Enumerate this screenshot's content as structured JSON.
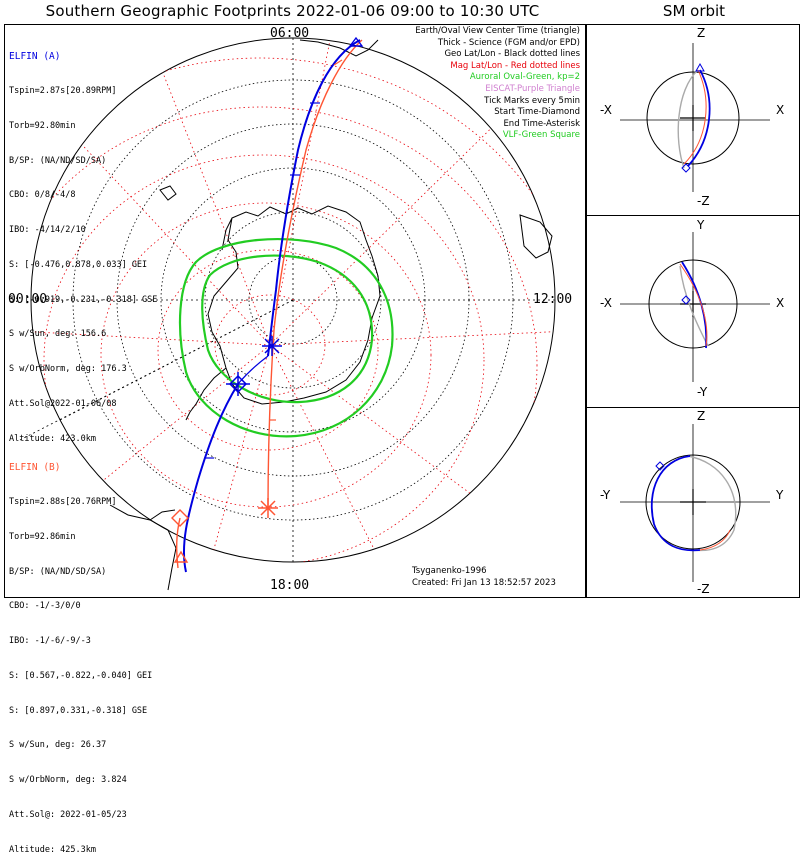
{
  "title": "Southern Geographic Footprints 2022-01-06 09:00 to 10:30 UTC",
  "sm_title": "SM orbit",
  "elfin_a": {
    "header": "ELFIN (A)",
    "lines": [
      "Tspin=2.87s[20.89RPM]",
      "Torb=92.80min",
      "B/SP: (NA/ND/SD/SA)",
      "CBO: 0/8/-4/8",
      "IBO: -4/14/2/10",
      "S: [-0.476,0.878,0.033] GEI",
      "S: [-0.919,-0.231,-0.318] GSE",
      "S w/Sun, deg: 156.6",
      "S w/OrbNorm, deg: 176.3",
      "Att.Sol@2022-01-06/08",
      "Altitude: 423.0km"
    ]
  },
  "elfin_b": {
    "header": "ELFIN (B)",
    "lines": [
      "Tspin=2.88s[20.76RPM]",
      "Torb=92.86min",
      "B/SP: (NA/ND/SD/SA)",
      "CBO: -1/-3/0/0",
      "IBO: -1/-6/-9/-3",
      "S: [0.567,-0.822,-0.040] GEI",
      "S: [0.897,0.331,-0.318] GSE",
      "S w/Sun, deg: 26.37",
      "S w/OrbNorm, deg: 3.824",
      "Att.Sol@: 2022-01-05/23",
      "Altitude: 425.3km"
    ]
  },
  "legend": [
    {
      "text": "Earth/Oval View Center Time (triangle)",
      "color": "#000000"
    },
    {
      "text": "Thick - Science (FGM and/or EPD)",
      "color": "#000000"
    },
    {
      "text": "Geo Lat/Lon - Black dotted lines",
      "color": "#000000"
    },
    {
      "text": "Mag Lat/Lon - Red dotted lines",
      "color": "#e8000a"
    },
    {
      "text": "Auroral Oval-Green, kp=2",
      "color": "#22cc22"
    },
    {
      "text": "EISCAT-Purple Triangle",
      "color": "#d080d0"
    },
    {
      "text": "Tick Marks every 5min",
      "color": "#000000"
    },
    {
      "text": "Start Time-Diamond",
      "color": "#000000"
    },
    {
      "text": "End Time-Asterisk",
      "color": "#000000"
    },
    {
      "text": "VLF-Green Square",
      "color": "#22cc22"
    }
  ],
  "clock_labels": {
    "top": "06:00",
    "left": "00:00",
    "right": "12:00",
    "bottom": "18:00"
  },
  "footer": {
    "model": "Tsyganenko-1996",
    "created": "Created: Fri Jan 13 18:52:57 2023"
  },
  "sm_panels": [
    {
      "top": "Z",
      "bottom": "-Z",
      "left": "-X",
      "right": "X"
    },
    {
      "top": "Y",
      "bottom": "-Y",
      "left": "-X",
      "right": "X"
    },
    {
      "top": "Z",
      "bottom": "-Z",
      "left": "-Y",
      "right": "Y"
    }
  ],
  "colors": {
    "elfin_a": "#0000e0",
    "elfin_b": "#ff5533",
    "oval": "#22cc22",
    "mag_grid": "#e8000a",
    "geo_grid": "#000000",
    "orbit_back": "#aaaaaa"
  }
}
